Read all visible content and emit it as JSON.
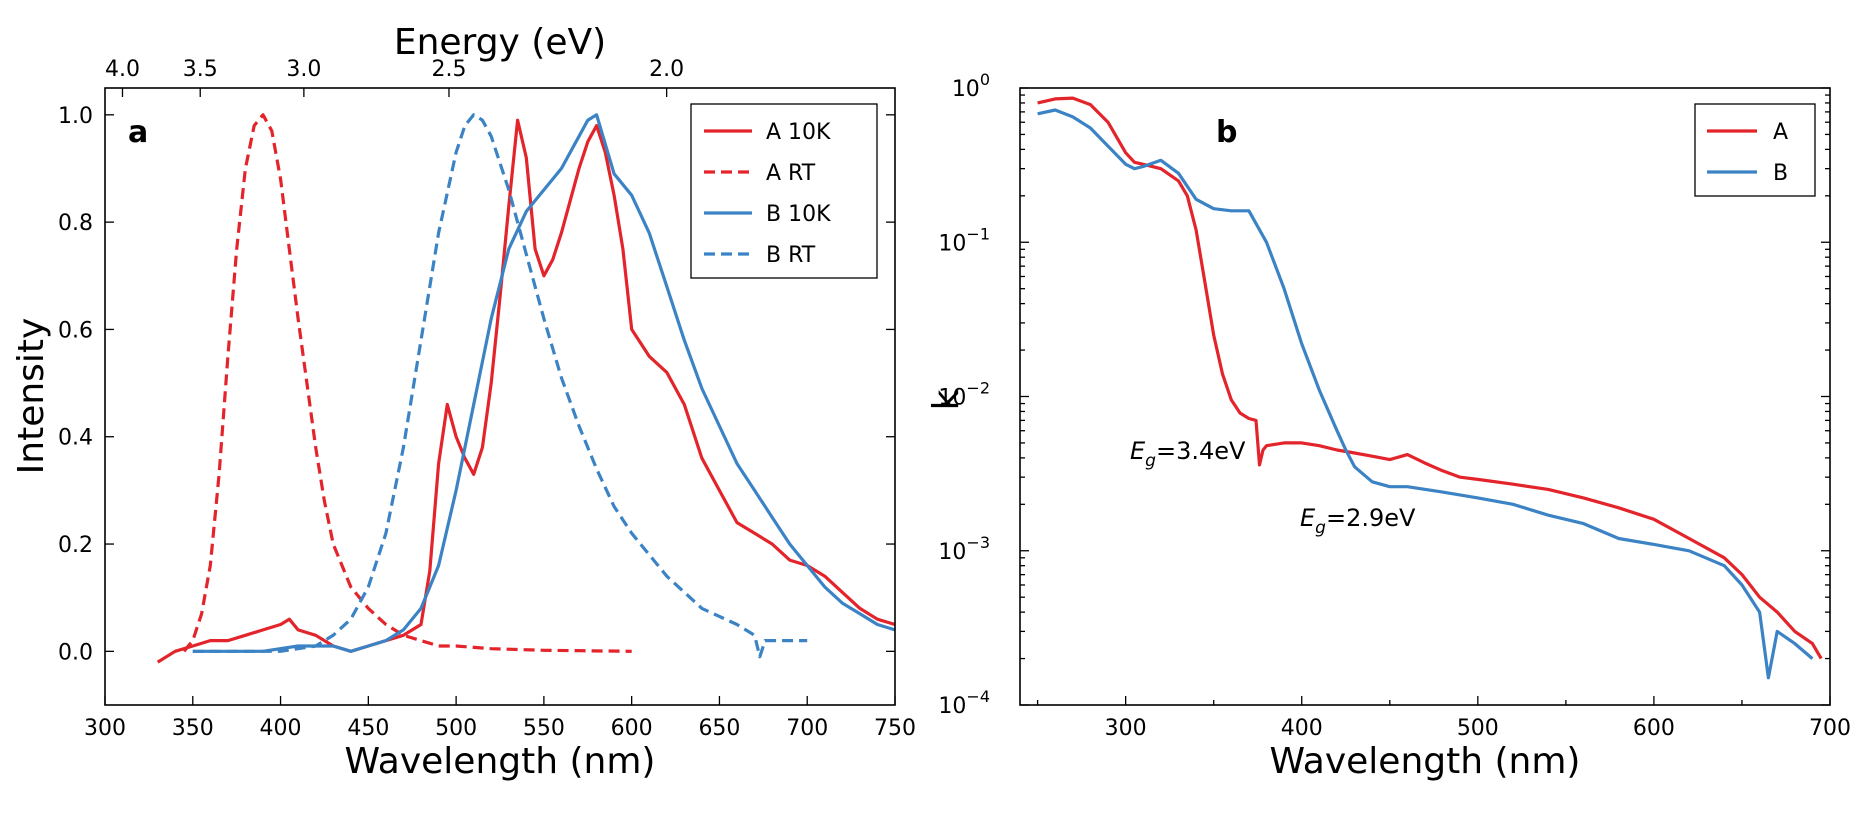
{
  "chart_data": [
    {
      "type": "line",
      "panel_label": "a",
      "xlabel": "Wavelength (nm)",
      "ylabel": "Intensity",
      "secondary_xlabel": "Energy (eV)",
      "xlim": [
        300,
        750
      ],
      "ylim": [
        -0.1,
        1.05
      ],
      "x_ticks": [
        "300",
        "350",
        "400",
        "450",
        "500",
        "550",
        "600",
        "650",
        "700",
        "750"
      ],
      "y_ticks": [
        "0.0",
        "0.2",
        "0.4",
        "0.6",
        "0.8",
        "1.0"
      ],
      "secondary_x_ticks": [
        "4.0",
        "3.5",
        "3.0",
        "2.5",
        "2.0"
      ],
      "legend_position": "top-right",
      "grid": false,
      "series": [
        {
          "name": "A 10K",
          "color": "#e3242b",
          "dash": "solid",
          "x": [
            330,
            340,
            350,
            360,
            370,
            380,
            390,
            400,
            405,
            410,
            420,
            430,
            440,
            450,
            460,
            470,
            480,
            485,
            490,
            495,
            500,
            505,
            510,
            515,
            520,
            525,
            530,
            535,
            540,
            545,
            550,
            555,
            560,
            565,
            570,
            575,
            580,
            585,
            590,
            595,
            600,
            610,
            620,
            630,
            640,
            650,
            660,
            670,
            680,
            690,
            700,
            710,
            720,
            730,
            740,
            750
          ],
          "y": [
            -0.02,
            0.0,
            0.01,
            0.02,
            0.02,
            0.03,
            0.04,
            0.05,
            0.06,
            0.04,
            0.03,
            0.01,
            0.0,
            0.01,
            0.02,
            0.03,
            0.05,
            0.15,
            0.35,
            0.46,
            0.4,
            0.36,
            0.33,
            0.38,
            0.5,
            0.66,
            0.83,
            0.99,
            0.92,
            0.75,
            0.7,
            0.73,
            0.78,
            0.84,
            0.9,
            0.95,
            0.98,
            0.93,
            0.85,
            0.75,
            0.6,
            0.55,
            0.52,
            0.46,
            0.36,
            0.3,
            0.24,
            0.22,
            0.2,
            0.17,
            0.16,
            0.14,
            0.11,
            0.08,
            0.06,
            0.05
          ]
        },
        {
          "name": "A RT",
          "color": "#e3242b",
          "dash": "dashed",
          "x": [
            345,
            350,
            355,
            360,
            365,
            370,
            375,
            380,
            385,
            390,
            395,
            400,
            405,
            410,
            415,
            420,
            425,
            430,
            440,
            450,
            460,
            470,
            480,
            490,
            500,
            520,
            550,
            575,
            600
          ],
          "y": [
            0.0,
            0.02,
            0.07,
            0.16,
            0.33,
            0.55,
            0.75,
            0.9,
            0.98,
            1.0,
            0.97,
            0.88,
            0.75,
            0.62,
            0.5,
            0.38,
            0.28,
            0.2,
            0.12,
            0.08,
            0.05,
            0.03,
            0.02,
            0.01,
            0.01,
            0.005,
            0.002,
            0.001,
            0.0
          ]
        },
        {
          "name": "B 10K",
          "color": "#3b83c4",
          "dash": "solid",
          "x": [
            350,
            370,
            390,
            410,
            430,
            440,
            450,
            460,
            470,
            480,
            490,
            500,
            510,
            520,
            530,
            540,
            550,
            560,
            570,
            575,
            580,
            590,
            600,
            610,
            620,
            630,
            640,
            650,
            660,
            670,
            680,
            690,
            700,
            710,
            720,
            730,
            740,
            750
          ],
          "y": [
            0.0,
            0.0,
            0.0,
            0.01,
            0.01,
            0.0,
            0.01,
            0.02,
            0.04,
            0.08,
            0.16,
            0.3,
            0.46,
            0.62,
            0.75,
            0.82,
            0.86,
            0.9,
            0.96,
            0.99,
            1.0,
            0.89,
            0.85,
            0.78,
            0.68,
            0.58,
            0.49,
            0.42,
            0.35,
            0.3,
            0.25,
            0.2,
            0.16,
            0.12,
            0.09,
            0.07,
            0.05,
            0.04
          ]
        },
        {
          "name": "B RT",
          "color": "#3b83c4",
          "dash": "dashed",
          "x": [
            350,
            380,
            400,
            420,
            430,
            440,
            450,
            460,
            470,
            480,
            490,
            500,
            505,
            510,
            515,
            520,
            530,
            540,
            550,
            560,
            570,
            580,
            590,
            600,
            620,
            640,
            660,
            670,
            673,
            676,
            680,
            690,
            700
          ],
          "y": [
            0.0,
            0.0,
            0.0,
            0.01,
            0.03,
            0.06,
            0.12,
            0.22,
            0.38,
            0.58,
            0.78,
            0.93,
            0.98,
            1.0,
            0.99,
            0.96,
            0.86,
            0.74,
            0.62,
            0.51,
            0.42,
            0.34,
            0.27,
            0.22,
            0.14,
            0.08,
            0.05,
            0.03,
            -0.01,
            0.02,
            0.02,
            0.02,
            0.02
          ]
        }
      ]
    },
    {
      "type": "line",
      "panel_label": "b",
      "xlabel": "Wavelength (nm)",
      "ylabel": "k",
      "xlim": [
        240,
        700
      ],
      "ylim": [
        0.0001,
        1
      ],
      "y_scale": "log",
      "x_ticks": [
        "300",
        "400",
        "500",
        "600",
        "700"
      ],
      "y_ticks": [
        "10^-4",
        "10^-3",
        "10^-2",
        "10^-1",
        "10^0"
      ],
      "legend_position": "top-right",
      "grid": false,
      "annotations": [
        {
          "text_base": "E",
          "text_sub": "g",
          "text_rest": "=3.4eV",
          "x": 360,
          "y": 0.0045
        },
        {
          "text_base": "E",
          "text_sub": "g",
          "text_rest": "=2.9eV",
          "x": 475,
          "y": 0.0017
        }
      ],
      "series": [
        {
          "name": "A",
          "color": "#e3242b",
          "x": [
            250,
            260,
            270,
            280,
            290,
            300,
            305,
            310,
            320,
            330,
            335,
            340,
            345,
            350,
            355,
            360,
            365,
            370,
            374,
            376,
            378,
            380,
            390,
            400,
            410,
            420,
            430,
            440,
            450,
            460,
            470,
            480,
            490,
            500,
            520,
            540,
            560,
            580,
            600,
            620,
            640,
            650,
            660,
            670,
            680,
            690,
            695
          ],
          "y": [
            0.8,
            0.85,
            0.86,
            0.78,
            0.6,
            0.38,
            0.33,
            0.32,
            0.3,
            0.25,
            0.2,
            0.12,
            0.055,
            0.025,
            0.014,
            0.0095,
            0.0078,
            0.0072,
            0.007,
            0.0036,
            0.0045,
            0.0048,
            0.005,
            0.005,
            0.0048,
            0.0045,
            0.0043,
            0.0041,
            0.0039,
            0.0042,
            0.0037,
            0.0033,
            0.003,
            0.0029,
            0.0027,
            0.0025,
            0.0022,
            0.0019,
            0.0016,
            0.0012,
            0.0009,
            0.0007,
            0.0005,
            0.0004,
            0.0003,
            0.00025,
            0.0002
          ]
        },
        {
          "name": "B",
          "color": "#3b83c4",
          "x": [
            250,
            260,
            270,
            280,
            290,
            300,
            305,
            310,
            320,
            330,
            340,
            350,
            360,
            370,
            380,
            390,
            400,
            410,
            420,
            425,
            430,
            440,
            450,
            460,
            480,
            500,
            520,
            540,
            560,
            580,
            600,
            620,
            640,
            650,
            660,
            665,
            670,
            680,
            690
          ],
          "y": [
            0.68,
            0.72,
            0.65,
            0.55,
            0.42,
            0.32,
            0.3,
            0.31,
            0.34,
            0.28,
            0.19,
            0.165,
            0.16,
            0.16,
            0.1,
            0.05,
            0.022,
            0.011,
            0.006,
            0.0045,
            0.0035,
            0.0028,
            0.0026,
            0.0026,
            0.0024,
            0.0022,
            0.002,
            0.0017,
            0.0015,
            0.0012,
            0.0011,
            0.001,
            0.0008,
            0.0006,
            0.0004,
            0.00015,
            0.0003,
            0.00025,
            0.0002
          ]
        }
      ]
    }
  ]
}
